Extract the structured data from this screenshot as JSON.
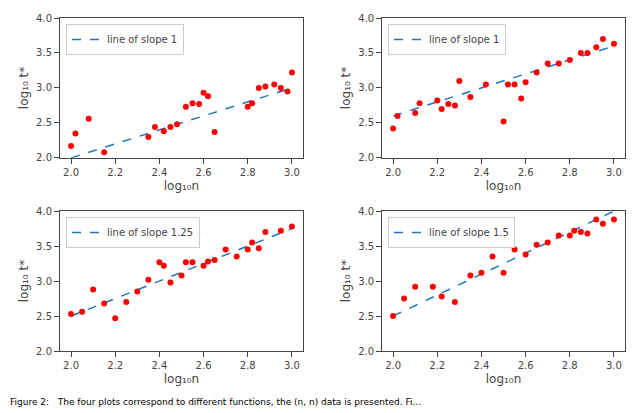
{
  "chart_data": [
    {
      "type": "line",
      "xlabel": "log₁₀n",
      "ylabel": "log₁₀ t*",
      "xlim": [
        1.95,
        3.05
      ],
      "ylim": [
        2.0,
        4.0
      ],
      "xticks": [
        {
          "value": 2.0,
          "label": "2.0"
        },
        2.2,
        2.4,
        2.6,
        2.8,
        {
          "value": 3.0,
          "label": "3.0"
        }
      ],
      "yticks": [
        {
          "value": 2.0,
          "label": "2.0"
        },
        2.5,
        {
          "value": 3.0,
          "label": "3.0"
        },
        3.5,
        {
          "value": 4.0,
          "label": "4.0"
        }
      ],
      "grid": false,
      "legend": "upper left",
      "series": [
        {
          "name": "line of slope 1",
          "type": "line",
          "line_style": "dashed",
          "color": "#1f77b4",
          "x": [
            2.0,
            3.0
          ],
          "values": [
            2.0,
            3.0
          ]
        },
        {
          "type": "scatter",
          "marker": "circle",
          "color": "#ff0000",
          "x": [
            2.0,
            2.02,
            2.08,
            2.15,
            2.35,
            2.38,
            2.42,
            2.45,
            2.48,
            2.52,
            2.55,
            2.58,
            2.6,
            2.62,
            2.65,
            2.8,
            2.82,
            2.85,
            2.88,
            2.92,
            2.95,
            2.98,
            3.0
          ],
          "values": [
            2.17,
            2.35,
            2.56,
            2.08,
            2.3,
            2.44,
            2.38,
            2.44,
            2.48,
            2.73,
            2.78,
            2.77,
            2.93,
            2.88,
            2.37,
            2.73,
            2.78,
            3.0,
            3.02,
            3.05,
            3.0,
            2.95,
            3.22
          ]
        }
      ]
    },
    {
      "type": "line",
      "xlabel": "log₁₀n",
      "ylabel": "log₁₀ t*",
      "xlim": [
        1.95,
        3.05
      ],
      "ylim": [
        2.0,
        4.0
      ],
      "xticks": [
        {
          "value": 2.0,
          "label": "2.0"
        },
        2.2,
        2.4,
        2.6,
        2.8,
        {
          "value": 3.0,
          "label": "3.0"
        }
      ],
      "yticks": [
        {
          "value": 2.0,
          "label": "2.0"
        },
        2.5,
        {
          "value": 3.0,
          "label": "3.0"
        },
        3.5,
        {
          "value": 4.0,
          "label": "4.0"
        }
      ],
      "grid": false,
      "legend": "upper left",
      "series": [
        {
          "name": "line of slope 1",
          "type": "line",
          "line_style": "dashed",
          "color": "#1f77b4",
          "x": [
            2.0,
            3.0
          ],
          "values": [
            2.6,
            3.6
          ]
        },
        {
          "type": "scatter",
          "marker": "circle",
          "color": "#ff0000",
          "x": [
            2.0,
            2.02,
            2.1,
            2.12,
            2.2,
            2.22,
            2.25,
            2.28,
            2.3,
            2.35,
            2.42,
            2.5,
            2.52,
            2.55,
            2.58,
            2.6,
            2.65,
            2.7,
            2.75,
            2.8,
            2.85,
            2.88,
            2.92,
            2.95,
            3.0
          ],
          "values": [
            2.42,
            2.6,
            2.64,
            2.78,
            2.82,
            2.7,
            2.77,
            2.75,
            3.1,
            2.87,
            3.05,
            2.52,
            3.05,
            3.05,
            2.85,
            3.08,
            3.22,
            3.35,
            3.35,
            3.4,
            3.5,
            3.5,
            3.58,
            3.7,
            3.63
          ]
        }
      ]
    },
    {
      "type": "line",
      "xlabel": "log₁₀n",
      "ylabel": "log₁₀ t*",
      "xlim": [
        1.95,
        3.05
      ],
      "ylim": [
        2.0,
        4.0
      ],
      "xticks": [
        {
          "value": 2.0,
          "label": "2.0"
        },
        2.2,
        2.4,
        2.6,
        2.8,
        {
          "value": 3.0,
          "label": "3.0"
        }
      ],
      "yticks": [
        {
          "value": 2.0,
          "label": "2.0"
        },
        2.5,
        {
          "value": 3.0,
          "label": "3.0"
        },
        3.5,
        {
          "value": 4.0,
          "label": "4.0"
        }
      ],
      "grid": false,
      "legend": "upper left",
      "series": [
        {
          "name": "line of slope 1.25",
          "type": "line",
          "line_style": "dashed",
          "color": "#1f77b4",
          "x": [
            2.0,
            3.0
          ],
          "values": [
            2.5,
            3.75
          ]
        },
        {
          "type": "scatter",
          "marker": "circle",
          "color": "#ff0000",
          "x": [
            2.0,
            2.05,
            2.1,
            2.15,
            2.2,
            2.25,
            2.3,
            2.35,
            2.4,
            2.42,
            2.45,
            2.5,
            2.52,
            2.55,
            2.6,
            2.62,
            2.65,
            2.7,
            2.75,
            2.8,
            2.82,
            2.85,
            2.88,
            2.95,
            3.0
          ],
          "values": [
            2.53,
            2.56,
            2.88,
            2.68,
            2.47,
            2.7,
            2.85,
            3.02,
            3.27,
            3.22,
            2.98,
            3.08,
            3.27,
            3.27,
            3.22,
            3.28,
            3.3,
            3.45,
            3.35,
            3.45,
            3.55,
            3.47,
            3.7,
            3.72,
            3.78
          ]
        }
      ]
    },
    {
      "type": "line",
      "xlabel": "log₁₀n",
      "ylabel": "log₁₀ t*",
      "xlim": [
        1.95,
        3.05
      ],
      "ylim": [
        2.0,
        4.0
      ],
      "xticks": [
        {
          "value": 2.0,
          "label": "2.0"
        },
        2.2,
        2.4,
        2.6,
        2.8,
        {
          "value": 3.0,
          "label": "3.0"
        }
      ],
      "yticks": [
        {
          "value": 2.0,
          "label": "2.0"
        },
        2.5,
        {
          "value": 3.0,
          "label": "3.0"
        },
        3.5,
        {
          "value": 4.0,
          "label": "4.0"
        }
      ],
      "grid": false,
      "legend": "upper left",
      "series": [
        {
          "name": "line of slope 1.5",
          "type": "line",
          "line_style": "dashed",
          "color": "#1f77b4",
          "x": [
            2.0,
            3.0
          ],
          "values": [
            2.5,
            4.0
          ]
        },
        {
          "type": "scatter",
          "marker": "circle",
          "color": "#ff0000",
          "x": [
            2.0,
            2.05,
            2.1,
            2.18,
            2.22,
            2.28,
            2.35,
            2.4,
            2.45,
            2.5,
            2.55,
            2.6,
            2.65,
            2.7,
            2.75,
            2.8,
            2.82,
            2.85,
            2.88,
            2.92,
            2.95,
            3.0
          ],
          "values": [
            2.5,
            2.75,
            2.92,
            2.92,
            2.78,
            2.7,
            3.08,
            3.12,
            3.35,
            3.12,
            3.45,
            3.38,
            3.52,
            3.55,
            3.65,
            3.65,
            3.72,
            3.7,
            3.68,
            3.88,
            3.82,
            3.88
          ]
        }
      ]
    }
  ],
  "caption": "Figure 2:   The four plots correspond to different functions, the (n, n) data is presented. Fi..."
}
